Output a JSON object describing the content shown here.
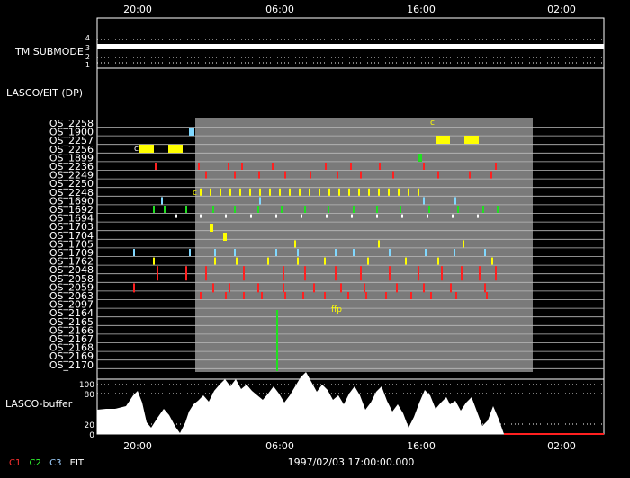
{
  "time_axis": {
    "ticks": [
      "20:00",
      "06:00",
      "16:00",
      "02:00"
    ],
    "footer_label": "1997/02/03 17:00:00.000"
  },
  "tm_submode": {
    "label": "TM SUBMODE",
    "levels": [
      "4",
      "3",
      "2",
      "1"
    ],
    "current_level": "3"
  },
  "section_title": "LASCO/EIT (DP)",
  "programs": [
    "OS_2258",
    "OS_1900",
    "OS_2257",
    "OS_2256",
    "OS_1899",
    "OS_2236",
    "OS_2249",
    "OS_2250",
    "OS_2248",
    "OS_1690",
    "OS_1692",
    "OS_1694",
    "OS_1703",
    "OS_1704",
    "OS_1705",
    "OS_1709",
    "OS_1762",
    "OS_2048",
    "OS_2058",
    "OS_2059",
    "OS_2063",
    "OS_2097",
    "OS_2164",
    "OS_2165",
    "OS_2166",
    "OS_2167",
    "OS_2168",
    "OS_2169",
    "OS_2170"
  ],
  "annotations": {
    "os_2256_marker": "c",
    "os_2258_marker": "c",
    "os_2248_marker": "c",
    "os_1692_marker": "*",
    "os_1694_marker": "*",
    "os_2097_text": "ffp"
  },
  "buffer": {
    "label": "LASCO-buffer",
    "scale_labels": [
      "100",
      "80",
      "20",
      "0"
    ]
  },
  "legend": [
    {
      "text": "C1",
      "color": "#ff3030"
    },
    {
      "text": "C2",
      "color": "#30ff30"
    },
    {
      "text": "C3",
      "color": "#a0d0ff"
    },
    {
      "text": "EIT",
      "color": "#ffffff"
    }
  ],
  "colors": {
    "background": "#000000",
    "frame": "#ffffff",
    "scheduled_window": "#7a7a7a",
    "yellow": "#ffff00",
    "red": "#ff2020",
    "green": "#20e020",
    "cyan": "#80d8ff"
  }
}
